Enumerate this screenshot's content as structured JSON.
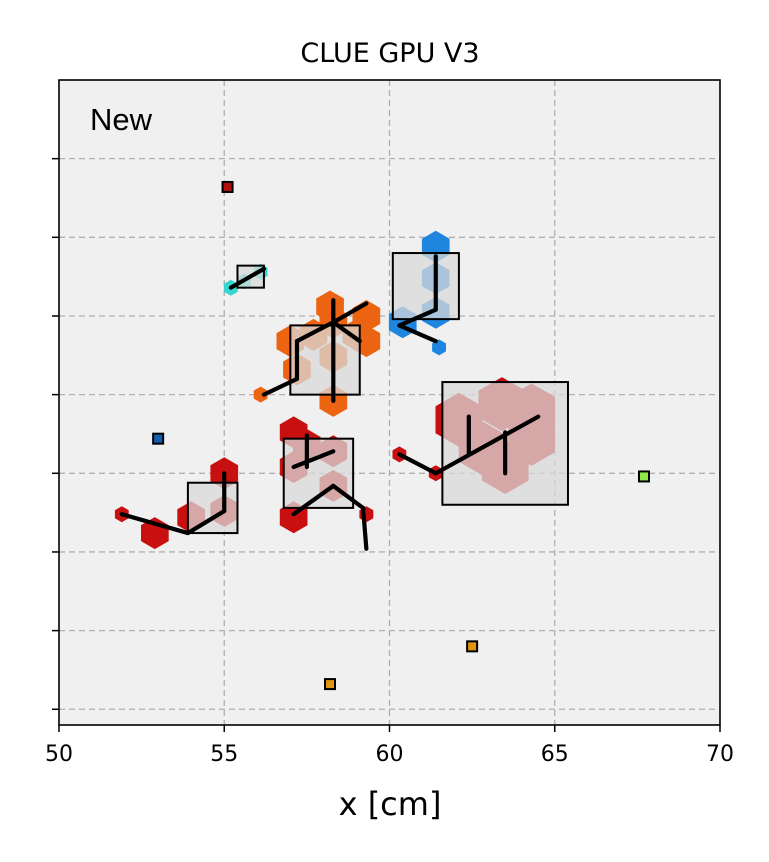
{
  "chart_data": {
    "type": "scatter",
    "title": "CLUE GPU V3",
    "xlabel": "x [cm]",
    "ylabel": "",
    "annotation": "New",
    "xlim": [
      50,
      70
    ],
    "ylim": [
      -8,
      12.5
    ],
    "xticks": [
      50,
      55,
      60,
      65,
      70
    ],
    "yticks": [
      -7.5,
      -5,
      -2.5,
      0,
      2.5,
      5,
      7.5,
      10
    ],
    "grid": true,
    "background": "#f0f0f0",
    "colors": {
      "red": "#c81010",
      "orange": "#ec6412",
      "blue": "#1f86e0",
      "cyan": "#36d6d0",
      "lime": "#8ee84a",
      "gold": "#e0960e",
      "darkred": "#b01010",
      "navy": "#1060b0"
    },
    "hits": [
      {
        "x": 51.9,
        "y": -1.3,
        "color": "red",
        "size": "s"
      },
      {
        "x": 52.9,
        "y": -1.9,
        "color": "red",
        "size": "m"
      },
      {
        "x": 54.0,
        "y": -1.4,
        "color": "red",
        "size": "m"
      },
      {
        "x": 55.0,
        "y": 0.0,
        "color": "red",
        "size": "m"
      },
      {
        "x": 55.0,
        "y": -1.2,
        "color": "red",
        "size": "m"
      },
      {
        "x": 56.1,
        "y": 2.5,
        "color": "orange",
        "size": "s"
      },
      {
        "x": 57.0,
        "y": 4.2,
        "color": "orange",
        "size": "m"
      },
      {
        "x": 57.2,
        "y": 3.3,
        "color": "orange",
        "size": "m"
      },
      {
        "x": 57.7,
        "y": 4.4,
        "color": "orange",
        "size": "m"
      },
      {
        "x": 58.2,
        "y": 5.3,
        "color": "orange",
        "size": "m"
      },
      {
        "x": 58.3,
        "y": 4.8,
        "color": "orange",
        "size": "m"
      },
      {
        "x": 58.3,
        "y": 3.7,
        "color": "orange",
        "size": "m"
      },
      {
        "x": 58.3,
        "y": 2.3,
        "color": "orange",
        "size": "m"
      },
      {
        "x": 59.0,
        "y": 4.4,
        "color": "orange",
        "size": "m"
      },
      {
        "x": 59.3,
        "y": 5.0,
        "color": "orange",
        "size": "m"
      },
      {
        "x": 59.3,
        "y": 4.2,
        "color": "orange",
        "size": "m"
      },
      {
        "x": 55.2,
        "y": 5.9,
        "color": "cyan",
        "size": "s"
      },
      {
        "x": 55.6,
        "y": 6.1,
        "color": "cyan",
        "size": "s"
      },
      {
        "x": 56.1,
        "y": 6.4,
        "color": "cyan",
        "size": "s"
      },
      {
        "x": 60.4,
        "y": 4.8,
        "color": "blue",
        "size": "m"
      },
      {
        "x": 61.4,
        "y": 5.1,
        "color": "blue",
        "size": "m"
      },
      {
        "x": 61.4,
        "y": 6.2,
        "color": "blue",
        "size": "m"
      },
      {
        "x": 61.4,
        "y": 7.2,
        "color": "blue",
        "size": "m"
      },
      {
        "x": 61.5,
        "y": 4.0,
        "color": "blue",
        "size": "s"
      },
      {
        "x": 57.1,
        "y": 1.3,
        "color": "red",
        "size": "m"
      },
      {
        "x": 57.1,
        "y": 0.2,
        "color": "red",
        "size": "m"
      },
      {
        "x": 57.1,
        "y": -1.4,
        "color": "red",
        "size": "m"
      },
      {
        "x": 57.5,
        "y": 0.9,
        "color": "red",
        "size": "m"
      },
      {
        "x": 58.3,
        "y": 0.7,
        "color": "red",
        "size": "m"
      },
      {
        "x": 58.3,
        "y": -0.4,
        "color": "red",
        "size": "m"
      },
      {
        "x": 59.3,
        "y": -1.3,
        "color": "red",
        "size": "s"
      },
      {
        "x": 60.3,
        "y": 0.6,
        "color": "red",
        "size": "s"
      },
      {
        "x": 61.4,
        "y": 0.0,
        "color": "red",
        "size": "s"
      },
      {
        "x": 62.1,
        "y": 1.7,
        "color": "red",
        "size": "l"
      },
      {
        "x": 62.8,
        "y": 0.8,
        "color": "red",
        "size": "l"
      },
      {
        "x": 63.4,
        "y": 2.2,
        "color": "red",
        "size": "l"
      },
      {
        "x": 63.5,
        "y": 0.2,
        "color": "red",
        "size": "l"
      },
      {
        "x": 64.3,
        "y": 1.1,
        "color": "red",
        "size": "l"
      },
      {
        "x": 64.3,
        "y": 2.0,
        "color": "red",
        "size": "l"
      }
    ],
    "isolated_points": [
      {
        "x": 55.1,
        "y": 9.1,
        "color": "darkred"
      },
      {
        "x": 53.0,
        "y": 1.1,
        "color": "navy"
      },
      {
        "x": 67.7,
        "y": -0.1,
        "color": "lime"
      },
      {
        "x": 62.5,
        "y": -5.5,
        "color": "gold"
      },
      {
        "x": 58.2,
        "y": -6.7,
        "color": "gold"
      }
    ],
    "cluster_boxes": [
      {
        "x0": 53.9,
        "x1": 55.4,
        "y0": -1.9,
        "y1": -0.3
      },
      {
        "x0": 55.4,
        "x1": 56.2,
        "y0": 5.9,
        "y1": 6.6
      },
      {
        "x0": 57.0,
        "x1": 59.1,
        "y0": 2.5,
        "y1": 4.7
      },
      {
        "x0": 60.1,
        "x1": 62.1,
        "y0": 4.9,
        "y1": 7.0
      },
      {
        "x0": 56.8,
        "x1": 58.9,
        "y0": -1.1,
        "y1": 1.1
      },
      {
        "x0": 61.6,
        "x1": 65.4,
        "y0": -1.0,
        "y1": 2.9
      }
    ],
    "links": [
      [
        51.9,
        -1.3,
        53.9,
        -1.9
      ],
      [
        53.9,
        -1.9,
        55.0,
        -1.2
      ],
      [
        55.0,
        -1.2,
        55.0,
        0.0
      ],
      [
        55.2,
        5.9,
        56.2,
        6.5
      ],
      [
        56.2,
        2.5,
        57.2,
        3.0
      ],
      [
        57.2,
        3.0,
        57.2,
        4.2
      ],
      [
        57.2,
        4.2,
        58.3,
        4.8
      ],
      [
        58.3,
        4.8,
        59.3,
        5.4
      ],
      [
        58.3,
        4.8,
        59.1,
        4.2
      ],
      [
        58.3,
        2.3,
        58.3,
        5.5
      ],
      [
        60.3,
        4.7,
        61.4,
        5.2
      ],
      [
        61.4,
        5.2,
        61.4,
        6.9
      ],
      [
        60.3,
        4.7,
        61.4,
        4.2
      ],
      [
        57.1,
        0.2,
        58.3,
        0.7
      ],
      [
        57.5,
        1.2,
        57.5,
        0.2
      ],
      [
        57.1,
        -1.3,
        58.3,
        -0.4
      ],
      [
        58.3,
        -0.4,
        59.2,
        -1.1
      ],
      [
        59.2,
        -1.1,
        59.3,
        -2.4
      ],
      [
        60.3,
        0.6,
        61.4,
        0.0
      ],
      [
        61.4,
        0.0,
        64.5,
        1.8
      ],
      [
        62.4,
        0.6,
        62.4,
        1.8
      ],
      [
        63.5,
        0.0,
        63.5,
        1.3
      ]
    ]
  }
}
